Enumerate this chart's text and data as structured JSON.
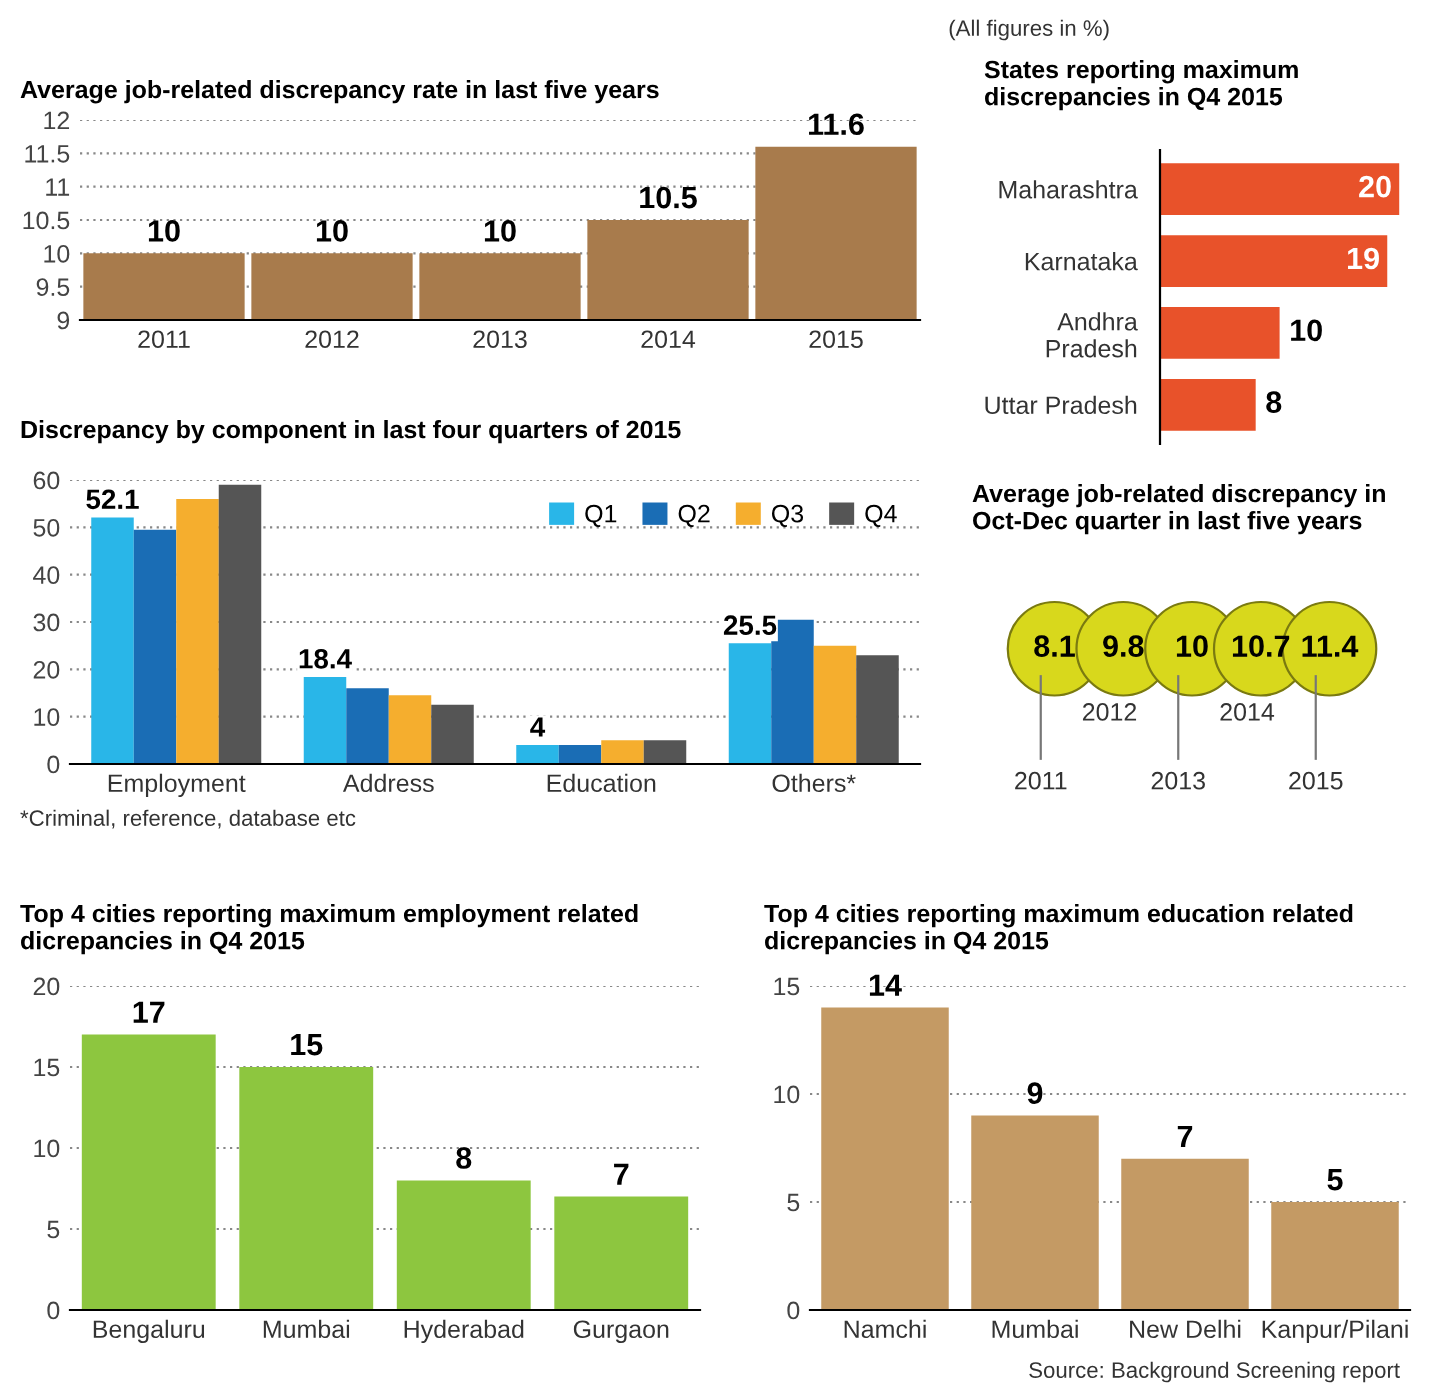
{
  "chart_data": [
    {
      "type": "bar",
      "title": "Average job-related discrepancy rate in last five years",
      "categories": [
        "2011",
        "2012",
        "2013",
        "2014",
        "2015"
      ],
      "values": [
        10,
        10,
        10,
        10.5,
        11.6
      ],
      "color": "#a87b4c",
      "ylim": [
        9,
        12
      ],
      "yticks": [
        9,
        9.5,
        10,
        10.5,
        11,
        11.5,
        12
      ],
      "grid": "y",
      "data_labels": true,
      "annotations": [
        "(All figures in %)"
      ]
    },
    {
      "type": "bar",
      "orientation": "horizontal",
      "title": "States reporting maximum\ndiscrepancies in Q4 2015",
      "categories": [
        "Maharashtra",
        "Karnataka",
        "Andhra\nPradesh",
        "Uttar Pradesh"
      ],
      "values": [
        20,
        19,
        10,
        8
      ],
      "color": "#e8522a",
      "data_labels": true
    },
    {
      "type": "bar",
      "title": "Discrepancy by component in last four quarters of 2015",
      "categories": [
        "Employment",
        "Address",
        "Education",
        "Others*"
      ],
      "ylim": [
        0,
        60
      ],
      "yticks": [
        0,
        10,
        20,
        30,
        40,
        50,
        60
      ],
      "grid": "y",
      "legend": "top right",
      "series": [
        {
          "name": "Q1",
          "color": "#29b6e8",
          "values": [
            52.1,
            18.4,
            4,
            25.5
          ],
          "value_labels": [
            "52.1",
            "18.4",
            "4",
            "25.5"
          ]
        },
        {
          "name": "Q2",
          "color": "#1a6db5",
          "values": [
            49.5,
            16,
            4,
            30.5
          ]
        },
        {
          "name": "Q3",
          "color": "#f5ae2e",
          "values": [
            56,
            14.5,
            5,
            25
          ]
        },
        {
          "name": "Q4",
          "color": "#555555",
          "values": [
            59,
            12.5,
            5,
            23
          ]
        }
      ],
      "annotations": [
        "*Criminal, reference, database etc"
      ]
    },
    {
      "type": "other",
      "title": "Average job-related discrepancy in\nOct-Dec quarter in last five years",
      "categories": [
        "2011",
        "2012",
        "2013",
        "2014",
        "2015"
      ],
      "values": [
        8.1,
        9.8,
        10,
        10.7,
        11.4
      ],
      "color": "#d8d81c",
      "data_labels": true
    },
    {
      "type": "bar",
      "title": "Top 4 cities reporting maximum employment related\ndicrepancies in Q4 2015",
      "categories": [
        "Bengaluru",
        "Mumbai",
        "Hyderabad",
        "Gurgaon"
      ],
      "values": [
        17,
        15,
        8,
        7
      ],
      "color": "#8dc63f",
      "ylim": [
        0,
        20
      ],
      "yticks": [
        0,
        5,
        10,
        15,
        20
      ],
      "grid": "y",
      "data_labels": true
    },
    {
      "type": "bar",
      "title": "Top 4 cities reporting maximum education related\ndicrepancies in Q4 2015",
      "categories": [
        "Namchi",
        "Mumbai",
        "New Delhi",
        "Kanpur/Pilani"
      ],
      "values": [
        14,
        9,
        7,
        5
      ],
      "color": "#c49a64",
      "ylim": [
        0,
        15
      ],
      "yticks": [
        0,
        5,
        10,
        15
      ],
      "grid": "y",
      "data_labels": true,
      "annotations": [
        "Source: Background Screening report"
      ]
    }
  ]
}
